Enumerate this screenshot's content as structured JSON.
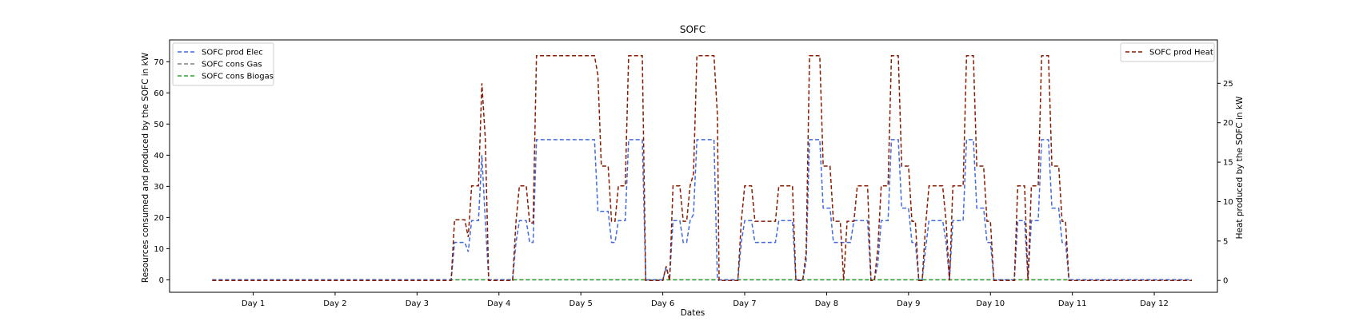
{
  "chart_data": {
    "type": "line",
    "title": "SOFC",
    "xlabel": "Dates",
    "ylabel_left": "Resources consumed and produced by the SOFC in kW",
    "ylabel_right": "Heat produced by the SOFC in kW",
    "x_unit": "hours",
    "x_range": [
      -12.5,
      294.5
    ],
    "x_ticks": [
      {
        "x": 12,
        "label": "Day 1"
      },
      {
        "x": 36,
        "label": "Day 2"
      },
      {
        "x": 60,
        "label": "Day 3"
      },
      {
        "x": 84,
        "label": "Day 4"
      },
      {
        "x": 108,
        "label": "Day 5"
      },
      {
        "x": 132,
        "label": "Day 6"
      },
      {
        "x": 156,
        "label": "Day 7"
      },
      {
        "x": 180,
        "label": "Day 8"
      },
      {
        "x": 204,
        "label": "Day 9"
      },
      {
        "x": 228,
        "label": "Day 10"
      },
      {
        "x": 252,
        "label": "Day 11"
      },
      {
        "x": 276,
        "label": "Day 12"
      }
    ],
    "y_left": {
      "range": [
        -4,
        77
      ],
      "ticks": [
        0,
        10,
        20,
        30,
        40,
        50,
        60,
        70
      ]
    },
    "y_right": {
      "range": [
        -1.5,
        30.5
      ],
      "ticks": [
        0,
        5,
        10,
        15,
        20,
        25
      ]
    },
    "grid": false,
    "legend_left": {
      "position": "upper left",
      "entries": [
        "SOFC prod Elec",
        "SOFC cons Gas",
        "SOFC cons Biogas"
      ]
    },
    "legend_right": {
      "position": "upper right",
      "entries": [
        "SOFC prod Heat"
      ]
    },
    "series": [
      {
        "name": "SOFC prod Elec",
        "axis": "left",
        "color": "#4169e1",
        "style": "dashed",
        "points": [
          [
            0,
            0
          ],
          [
            70,
            0
          ],
          [
            71,
            12
          ],
          [
            74,
            12
          ],
          [
            75,
            9
          ],
          [
            76,
            19
          ],
          [
            78,
            19
          ],
          [
            79,
            40
          ],
          [
            80,
            19
          ],
          [
            81,
            0
          ],
          [
            88,
            0
          ],
          [
            89,
            12
          ],
          [
            90,
            19
          ],
          [
            92,
            19
          ],
          [
            93,
            12
          ],
          [
            94,
            12
          ],
          [
            95,
            45
          ],
          [
            112,
            45
          ],
          [
            113,
            22
          ],
          [
            116,
            22
          ],
          [
            117,
            12
          ],
          [
            118,
            12
          ],
          [
            119,
            19
          ],
          [
            121,
            19
          ],
          [
            122,
            45
          ],
          [
            126,
            45
          ],
          [
            127,
            0
          ],
          [
            132,
            0
          ],
          [
            133,
            4
          ],
          [
            134,
            0
          ],
          [
            135,
            19
          ],
          [
            137,
            19
          ],
          [
            138,
            12
          ],
          [
            139,
            12
          ],
          [
            140,
            19
          ],
          [
            141,
            21
          ],
          [
            142,
            45
          ],
          [
            147,
            45
          ],
          [
            148,
            0
          ],
          [
            154,
            0
          ],
          [
            155,
            12
          ],
          [
            156,
            19
          ],
          [
            158,
            19
          ],
          [
            159,
            12
          ],
          [
            165,
            12
          ],
          [
            166,
            19
          ],
          [
            170,
            19
          ],
          [
            171,
            0
          ],
          [
            173,
            0
          ],
          [
            174,
            6
          ],
          [
            175,
            45
          ],
          [
            178,
            45
          ],
          [
            179,
            23
          ],
          [
            181,
            23
          ],
          [
            182,
            12
          ],
          [
            184,
            12
          ],
          [
            185,
            12
          ],
          [
            187,
            12
          ],
          [
            188,
            19
          ],
          [
            192,
            19
          ],
          [
            193,
            0
          ],
          [
            194,
            0
          ],
          [
            195,
            5
          ],
          [
            196,
            19
          ],
          [
            198,
            19
          ],
          [
            199,
            45
          ],
          [
            201,
            45
          ],
          [
            202,
            23
          ],
          [
            204,
            23
          ],
          [
            205,
            12
          ],
          [
            206,
            12
          ],
          [
            207,
            0
          ],
          [
            208,
            0
          ],
          [
            209,
            10
          ],
          [
            210,
            19
          ],
          [
            214,
            19
          ],
          [
            215,
            12
          ],
          [
            216,
            0
          ],
          [
            217,
            19
          ],
          [
            220,
            19
          ],
          [
            221,
            45
          ],
          [
            223,
            45
          ],
          [
            224,
            23
          ],
          [
            226,
            23
          ],
          [
            227,
            12
          ],
          [
            228,
            12
          ],
          [
            229,
            0
          ],
          [
            235,
            0
          ],
          [
            236,
            19
          ],
          [
            238,
            19
          ],
          [
            239,
            0
          ],
          [
            240,
            19
          ],
          [
            242,
            19
          ],
          [
            243,
            45
          ],
          [
            245,
            45
          ],
          [
            246,
            23
          ],
          [
            248,
            23
          ],
          [
            249,
            12
          ],
          [
            250,
            12
          ],
          [
            251,
            0
          ],
          [
            287,
            0
          ]
        ]
      },
      {
        "name": "SOFC cons Gas",
        "axis": "left",
        "color": "#808080",
        "style": "dashed",
        "points": [
          [
            0,
            0
          ],
          [
            287,
            0
          ]
        ]
      },
      {
        "name": "SOFC cons Biogas",
        "axis": "left",
        "color": "#2ca02c",
        "style": "dashed",
        "points": [
          [
            0,
            0
          ],
          [
            287,
            0
          ]
        ]
      },
      {
        "name": "SOFC prod Heat",
        "axis": "right",
        "color": "#8b1a00",
        "style": "dashed",
        "points": [
          [
            0,
            0
          ],
          [
            70,
            0
          ],
          [
            71,
            7.7
          ],
          [
            74,
            7.7
          ],
          [
            75,
            5.5
          ],
          [
            76,
            12
          ],
          [
            78,
            12
          ],
          [
            79,
            25
          ],
          [
            80,
            18
          ],
          [
            81,
            0
          ],
          [
            88,
            0
          ],
          [
            89,
            7.5
          ],
          [
            90,
            12
          ],
          [
            92,
            12
          ],
          [
            93,
            7.3
          ],
          [
            94,
            7.3
          ],
          [
            95,
            28.5
          ],
          [
            112,
            28.5
          ],
          [
            113,
            26
          ],
          [
            114,
            14.5
          ],
          [
            116,
            14.5
          ],
          [
            117,
            7.5
          ],
          [
            118,
            7.5
          ],
          [
            119,
            12
          ],
          [
            121,
            12
          ],
          [
            122,
            28.5
          ],
          [
            126,
            28.5
          ],
          [
            127,
            0
          ],
          [
            132,
            0
          ],
          [
            133,
            1.8
          ],
          [
            134,
            0
          ],
          [
            135,
            12
          ],
          [
            137,
            12
          ],
          [
            138,
            7.5
          ],
          [
            139,
            7.5
          ],
          [
            140,
            12
          ],
          [
            141,
            13.5
          ],
          [
            142,
            28.5
          ],
          [
            147,
            28.5
          ],
          [
            148,
            21
          ],
          [
            148.5,
            0
          ],
          [
            154,
            0
          ],
          [
            155,
            7.5
          ],
          [
            156,
            12
          ],
          [
            158,
            12
          ],
          [
            159,
            7.5
          ],
          [
            165,
            7.5
          ],
          [
            166,
            12
          ],
          [
            170,
            12
          ],
          [
            171,
            0
          ],
          [
            173,
            0
          ],
          [
            174,
            3.5
          ],
          [
            175,
            28.5
          ],
          [
            178,
            28.5
          ],
          [
            179,
            14.5
          ],
          [
            181,
            14.5
          ],
          [
            182,
            7.5
          ],
          [
            184,
            7.5
          ],
          [
            185,
            0
          ],
          [
            186,
            7.5
          ],
          [
            188,
            7.5
          ],
          [
            189,
            12
          ],
          [
            192,
            12
          ],
          [
            193,
            0
          ],
          [
            194,
            0
          ],
          [
            195,
            4
          ],
          [
            196,
            12
          ],
          [
            198,
            12
          ],
          [
            199,
            28.5
          ],
          [
            201,
            28.5
          ],
          [
            202,
            14.5
          ],
          [
            204,
            14.5
          ],
          [
            205,
            7.5
          ],
          [
            206,
            7.5
          ],
          [
            207,
            0
          ],
          [
            208,
            0
          ],
          [
            209,
            7
          ],
          [
            210,
            12
          ],
          [
            214,
            12
          ],
          [
            215,
            7.5
          ],
          [
            216,
            0
          ],
          [
            217,
            12
          ],
          [
            220,
            12
          ],
          [
            221,
            28.5
          ],
          [
            223,
            28.5
          ],
          [
            224,
            14.5
          ],
          [
            226,
            14.5
          ],
          [
            227,
            7.5
          ],
          [
            228,
            7.5
          ],
          [
            229,
            0
          ],
          [
            235,
            0
          ],
          [
            236,
            12
          ],
          [
            238,
            12
          ],
          [
            239,
            0
          ],
          [
            240,
            12
          ],
          [
            242,
            12
          ],
          [
            243,
            28.5
          ],
          [
            245,
            28.5
          ],
          [
            246,
            14.5
          ],
          [
            248,
            14.5
          ],
          [
            249,
            7.5
          ],
          [
            250,
            7.5
          ],
          [
            251,
            0
          ],
          [
            287,
            0
          ]
        ]
      }
    ]
  }
}
